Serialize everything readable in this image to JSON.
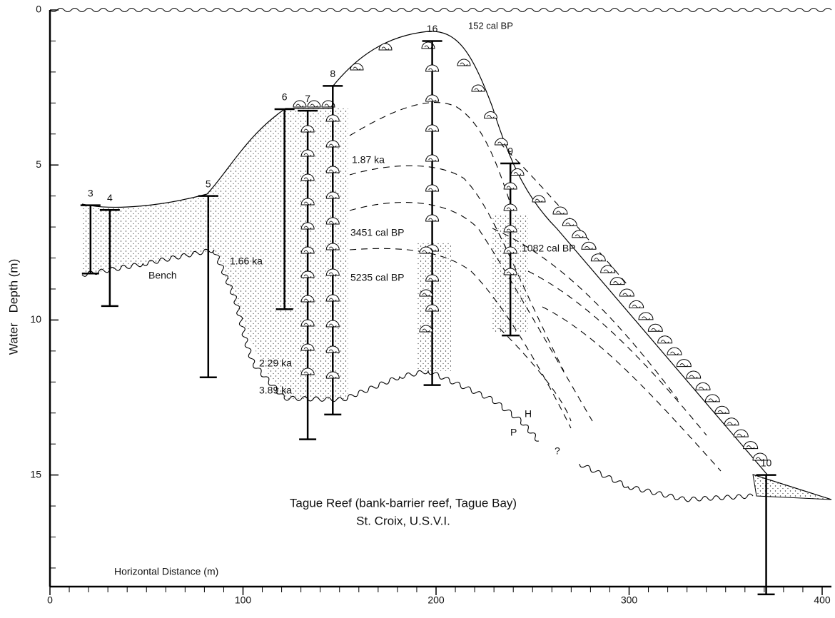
{
  "title_lines": [
    "Tague Reef (bank-barrier reef, Tague Bay)",
    "St. Croix, U.S.V.I."
  ],
  "x_axis": {
    "label": "Horizontal Distance (m)",
    "lim": [
      0,
      400
    ],
    "ticks": [
      0,
      100,
      200,
      300,
      400
    ]
  },
  "y_axis": {
    "label": "Water   Depth (m)",
    "lim": [
      0,
      18.6
    ],
    "ticks": [
      0,
      5,
      10,
      15
    ]
  },
  "cores": [
    {
      "label": "3",
      "x": 21,
      "top": 6.3,
      "bottom": 8.5
    },
    {
      "label": "4",
      "x": 31,
      "top": 6.45,
      "bottom": 9.55
    },
    {
      "label": "5",
      "x": 82,
      "top": 6.0,
      "bottom": 11.85
    },
    {
      "label": "6",
      "x": 121.5,
      "top": 3.2,
      "bottom": 9.65
    },
    {
      "label": "7",
      "x": 133.5,
      "top": 3.25,
      "bottom": 13.85
    },
    {
      "label": "8",
      "x": 146.5,
      "top": 2.45,
      "bottom": 13.05
    },
    {
      "label": "16",
      "x": 198,
      "top": 1.0,
      "bottom": 12.1
    },
    {
      "label": "9",
      "x": 238.5,
      "top": 4.95,
      "bottom": 10.5
    },
    {
      "label": "10",
      "x": 371,
      "top": 15.0,
      "bottom": 18.85
    }
  ],
  "dates": [
    "152 cal BP",
    "1.87 ka",
    "3451 cal BP",
    "5235 cal BP",
    "1.66 ka",
    "2.29 ka",
    "3.89 ka",
    "1082 cal BP"
  ],
  "facies_labels": {
    "bench": "Bench",
    "h": "H",
    "p": "P",
    "unknown": "?"
  }
}
